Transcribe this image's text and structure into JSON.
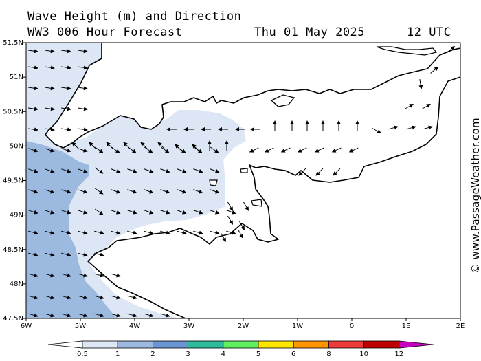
{
  "header": {
    "title": "Wave Height (m) and Direction",
    "model": "WW3 006 Hour Forecast",
    "date": "Thu 01 May 2025",
    "time": "12 UTC"
  },
  "watermark": "© www.PassageWeather.com",
  "map": {
    "lon_ticks": [
      {
        "lon": -6,
        "label": "6W"
      },
      {
        "lon": -5,
        "label": "5W"
      },
      {
        "lon": -4,
        "label": "4W"
      },
      {
        "lon": -3,
        "label": "3W"
      },
      {
        "lon": -2,
        "label": "2W"
      },
      {
        "lon": -1,
        "label": "1W"
      },
      {
        "lon": 0,
        "label": "0"
      },
      {
        "lon": 1,
        "label": "1E"
      },
      {
        "lon": 2,
        "label": "2E"
      }
    ],
    "lat_ticks": [
      {
        "lat": 51.5,
        "label": "51.5N"
      },
      {
        "lat": 51,
        "label": "51N"
      },
      {
        "lat": 50.5,
        "label": "50.5N"
      },
      {
        "lat": 50,
        "label": "50N"
      },
      {
        "lat": 49.5,
        "label": "49.5N"
      },
      {
        "lat": 49,
        "label": "49N"
      },
      {
        "lat": 48.5,
        "label": "48.5N"
      },
      {
        "lat": 48,
        "label": "48N"
      },
      {
        "lat": 47.5,
        "label": "47.5N"
      }
    ]
  },
  "legend": {
    "labels": [
      "0.5",
      "1",
      "2",
      "3",
      "4",
      "5",
      "6",
      "8",
      "10",
      "12"
    ],
    "colors": [
      "#dde6f4",
      "#9cbadf",
      "#6b94d3",
      "#2cbc9c",
      "#5ef05e",
      "#ffe600",
      "#ff9400",
      "#ef3a3a",
      "#c00000",
      "#c800c0"
    ],
    "low_color": "#ffffff"
  },
  "colors": {
    "shade_light": "#dde6f4",
    "shade_mid": "#9cbadf",
    "land": "#ffffff",
    "coast": "#000000"
  }
}
